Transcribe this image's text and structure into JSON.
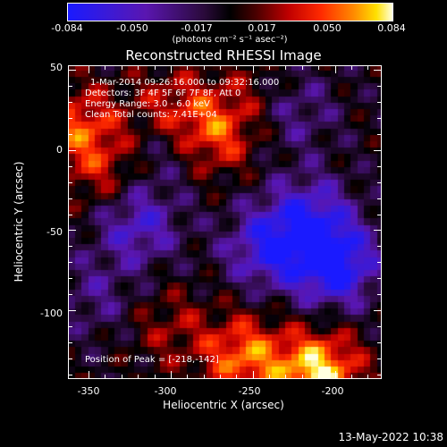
{
  "colorbar": {
    "ticks": [
      "-0.084",
      "-0.050",
      "-0.017",
      "0.017",
      "0.050",
      "0.084"
    ],
    "units": "(photons cm⁻² s⁻¹ asec⁻²)"
  },
  "title": "Reconstructed RHESSI Image",
  "info": {
    "line1": "1-Mar-2014 09:26:16.000 to 09:32:16.000",
    "line2": "Detectors: 3F 4F 5F 6F 7F 8F, Att 0",
    "line3": "Energy Range: 3.0 - 6.0 keV",
    "line4": "Clean    Total counts: 7.41E+04"
  },
  "peak_text": "Position of Peak = [-218,-142]",
  "footer_date": "13-May-2022 10:38",
  "colors": {
    "background": "#000000",
    "foreground": "#ffffff"
  },
  "chart_data": {
    "type": "heatmap",
    "title": "Reconstructed RHESSI Image",
    "xlabel": "Heliocentric X (arcsec)",
    "ylabel": "Heliocentric Y (arcsec)",
    "xlim": [
      -362,
      -172
    ],
    "ylim": [
      -142,
      52
    ],
    "x_ticks": [
      -350,
      -300,
      -250,
      -200
    ],
    "y_ticks": [
      50,
      0,
      -50,
      -100
    ],
    "colorbar_range": [
      -0.084,
      0.084
    ],
    "peak_position": [
      -218,
      -142
    ],
    "grid_step_arcsec": 4,
    "bright_regions": [
      {
        "x": -210,
        "y": -138,
        "value": 0.084
      },
      {
        "x": -255,
        "y": -128,
        "value": 0.06
      },
      {
        "x": -275,
        "y": 10,
        "value": 0.055
      },
      {
        "x": -300,
        "y": 25,
        "value": 0.04
      },
      {
        "x": -355,
        "y": 15,
        "value": 0.05
      },
      {
        "x": -340,
        "y": -15,
        "value": 0.03
      },
      {
        "x": -250,
        "y": 35,
        "value": 0.02
      },
      {
        "x": -300,
        "y": -110,
        "value": 0.025
      }
    ],
    "dim_regions": [
      {
        "x": -200,
        "y": -70,
        "value": -0.084
      },
      {
        "x": -240,
        "y": -60,
        "value": -0.06
      },
      {
        "x": -215,
        "y": -40,
        "value": -0.05
      },
      {
        "x": -320,
        "y": -45,
        "value": -0.05
      },
      {
        "x": -300,
        "y": 5,
        "value": -0.035
      },
      {
        "x": -225,
        "y": 25,
        "value": -0.03
      },
      {
        "x": -345,
        "y": -90,
        "value": -0.025
      }
    ]
  }
}
